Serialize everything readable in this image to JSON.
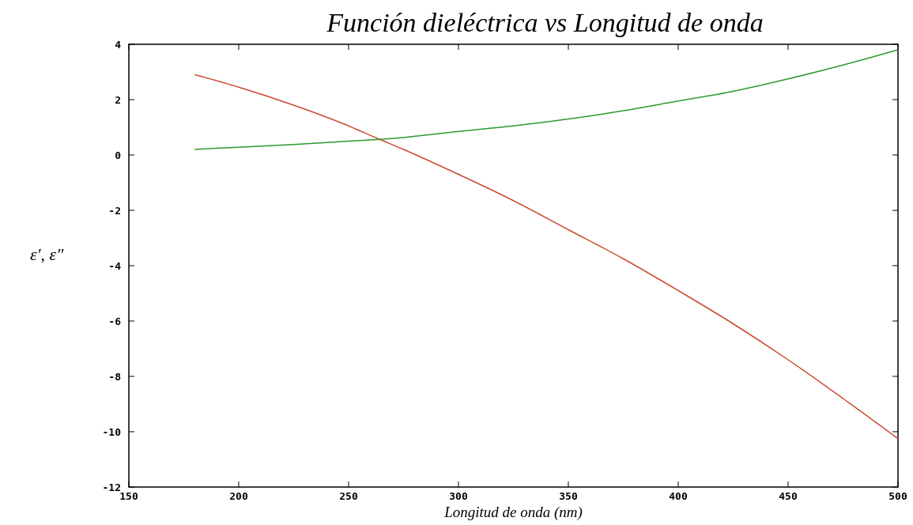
{
  "chart_data": {
    "type": "line",
    "title": "Función dieléctrica vs Longitud de onda",
    "xlabel": "Longitud de onda (nm)",
    "ylabel": "ε′, ε″",
    "xlim": [
      150,
      500
    ],
    "ylim": [
      -12,
      4
    ],
    "xticks": [
      150,
      200,
      250,
      300,
      350,
      400,
      450,
      500
    ],
    "yticks": [
      -12,
      -10,
      -8,
      -6,
      -4,
      -2,
      0,
      2,
      4
    ],
    "grid": false,
    "x": [
      180,
      200,
      225,
      250,
      263,
      275,
      300,
      325,
      350,
      375,
      400,
      425,
      450,
      475,
      500
    ],
    "series": [
      {
        "color": "#cc4a2e",
        "values": [
          2.9,
          2.45,
          1.8,
          1.05,
          0.6,
          0.2,
          -0.7,
          -1.65,
          -2.7,
          -3.75,
          -4.9,
          -6.1,
          -7.4,
          -8.8,
          -10.25
        ]
      },
      {
        "color": "#2e9a2e",
        "values": [
          0.2,
          0.28,
          0.38,
          0.5,
          0.56,
          0.63,
          0.85,
          1.05,
          1.3,
          1.6,
          1.95,
          2.3,
          2.75,
          3.25,
          3.8
        ]
      }
    ]
  }
}
